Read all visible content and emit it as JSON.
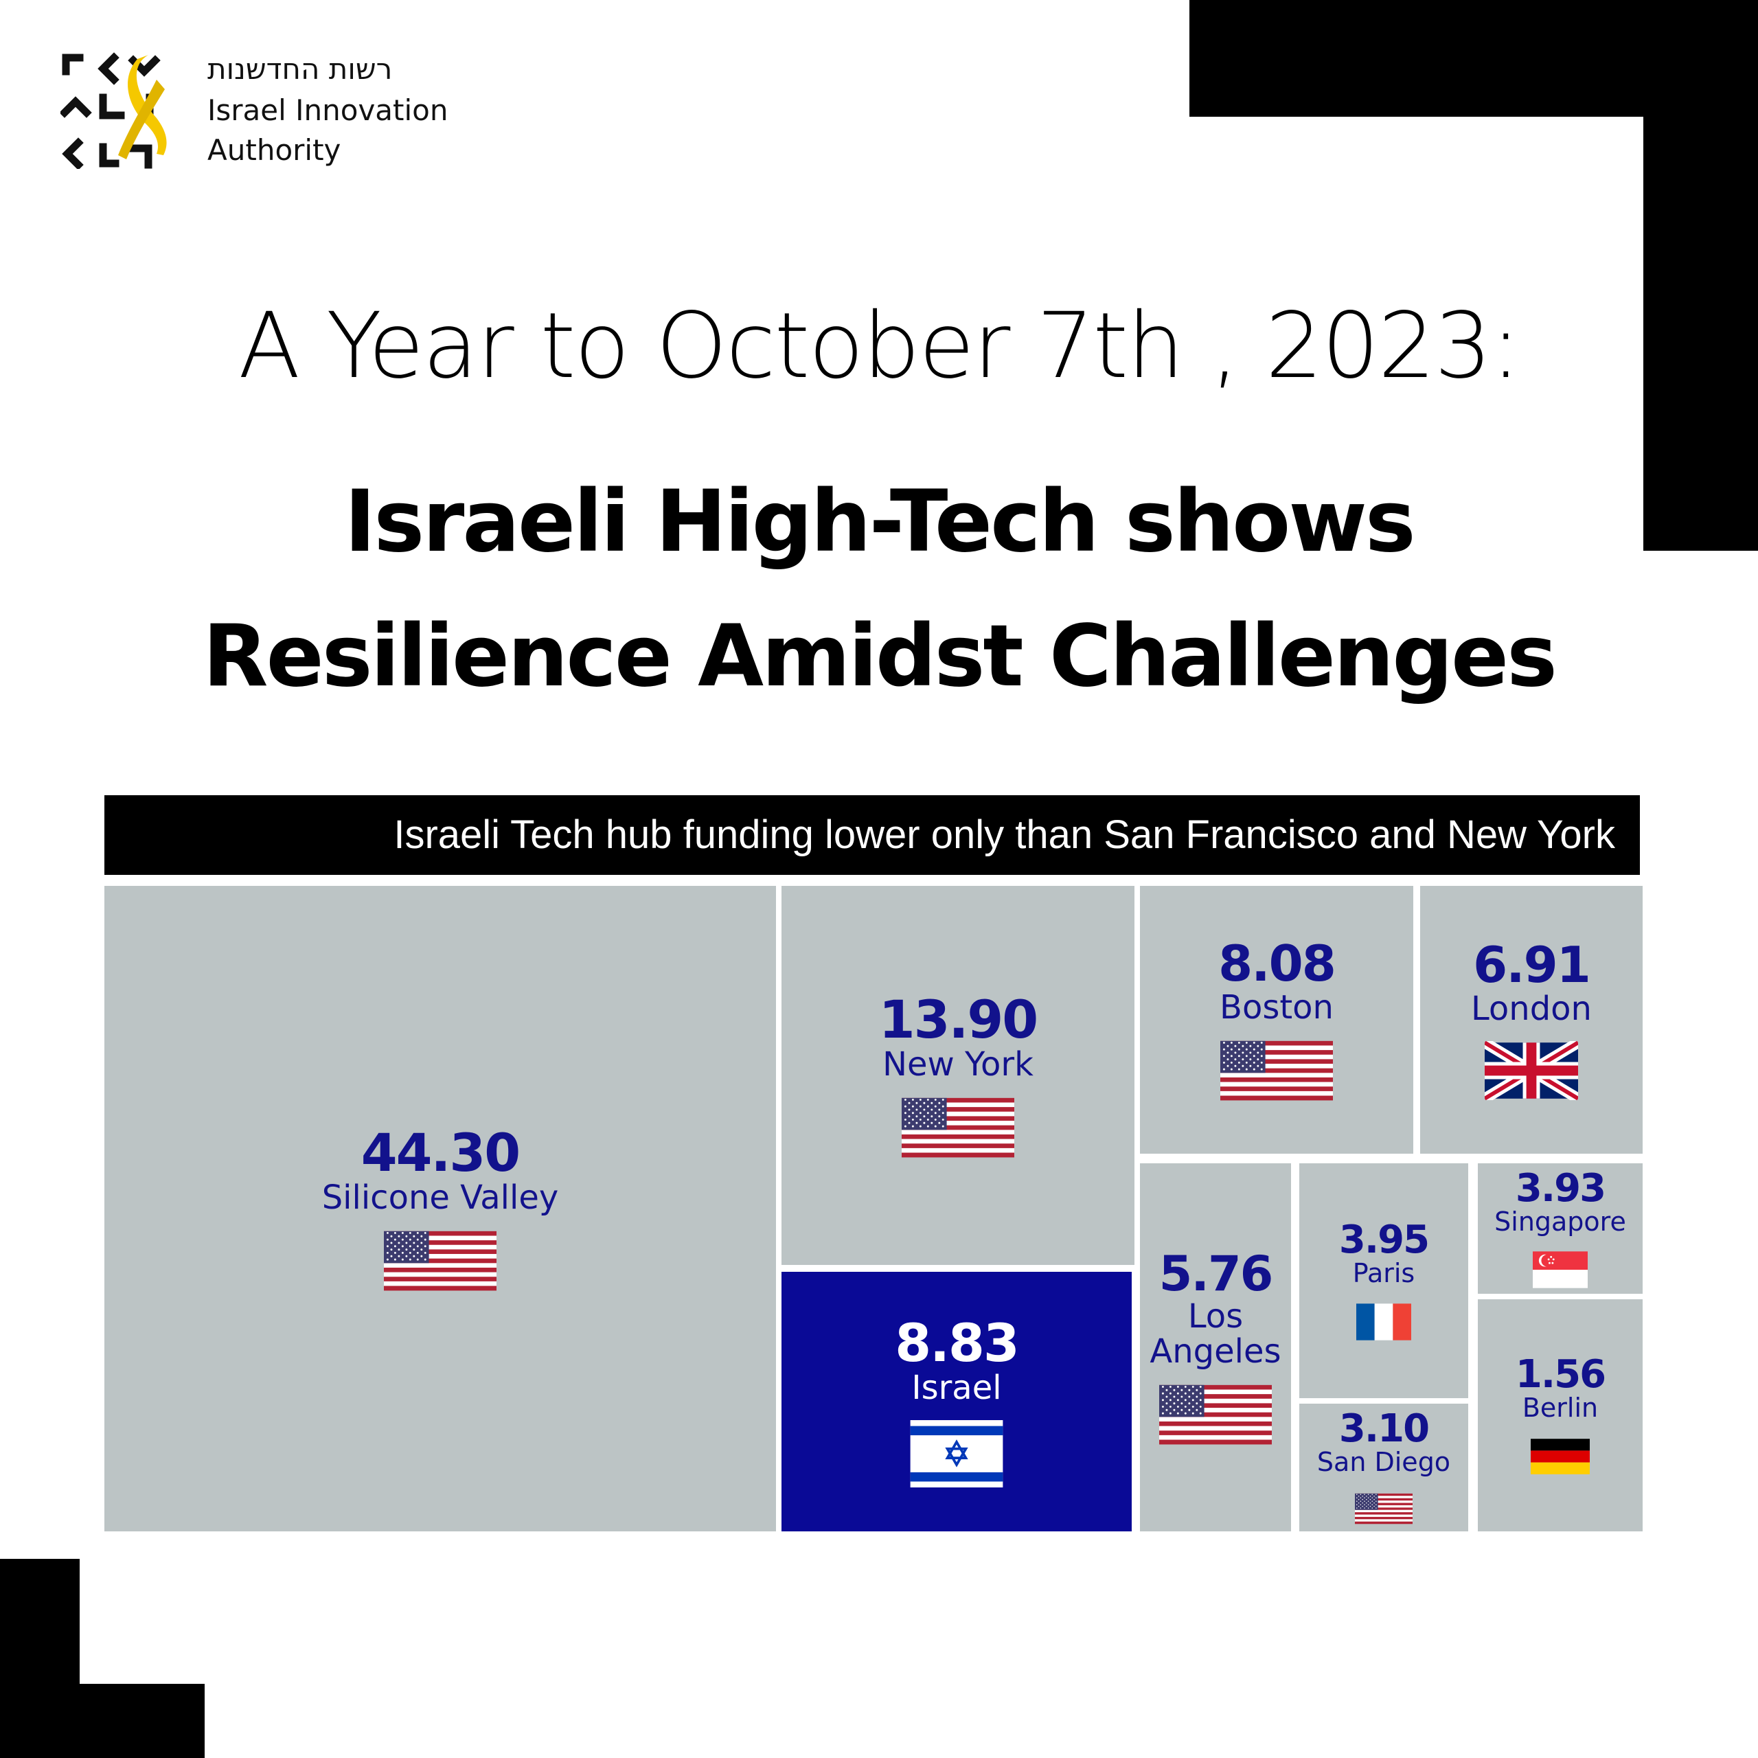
{
  "org": {
    "name_hebrew": "רשות החדשנות",
    "name_line1": "Israel Innovation",
    "name_line2": "Authority",
    "logo_accent": "#f5c800"
  },
  "heading": {
    "line1": "A Year to October 7th , 2023:",
    "line2": "Israeli High-Tech shows",
    "line3": "Resilience Amidst Challenges"
  },
  "chart_data": {
    "type": "treemap",
    "title": "Israeli Tech hub funding lower only than San Francisco and New York",
    "highlight": "Israel",
    "highlight_color": "#0a0a96",
    "tile_color": "#bcc4c5",
    "label_color": "#12128c",
    "items": [
      {
        "value_label": "44.30",
        "value": 44.3,
        "name": "Silicone Valley",
        "flag": "us-flag-icon"
      },
      {
        "value_label": "13.90",
        "value": 13.9,
        "name": "New York",
        "flag": "us-flag-icon"
      },
      {
        "value_label": "8.83",
        "value": 8.83,
        "name": "Israel",
        "flag": "israel-flag-icon"
      },
      {
        "value_label": "8.08",
        "value": 8.08,
        "name": "Boston",
        "flag": "us-flag-icon"
      },
      {
        "value_label": "6.91",
        "value": 6.91,
        "name": "London",
        "flag": "uk-flag-icon"
      },
      {
        "value_label": "5.76",
        "value": 5.76,
        "name": "Los Angeles",
        "flag": "us-flag-icon"
      },
      {
        "value_label": "3.95",
        "value": 3.95,
        "name": "Paris",
        "flag": "france-flag-icon"
      },
      {
        "value_label": "3.93",
        "value": 3.93,
        "name": "Singapore",
        "flag": "singapore-flag-icon"
      },
      {
        "value_label": "3.10",
        "value": 3.1,
        "name": "San Diego",
        "flag": "us-flag-icon"
      },
      {
        "value_label": "1.56",
        "value": 1.56,
        "name": "Berlin",
        "flag": "germany-flag-icon"
      }
    ]
  }
}
